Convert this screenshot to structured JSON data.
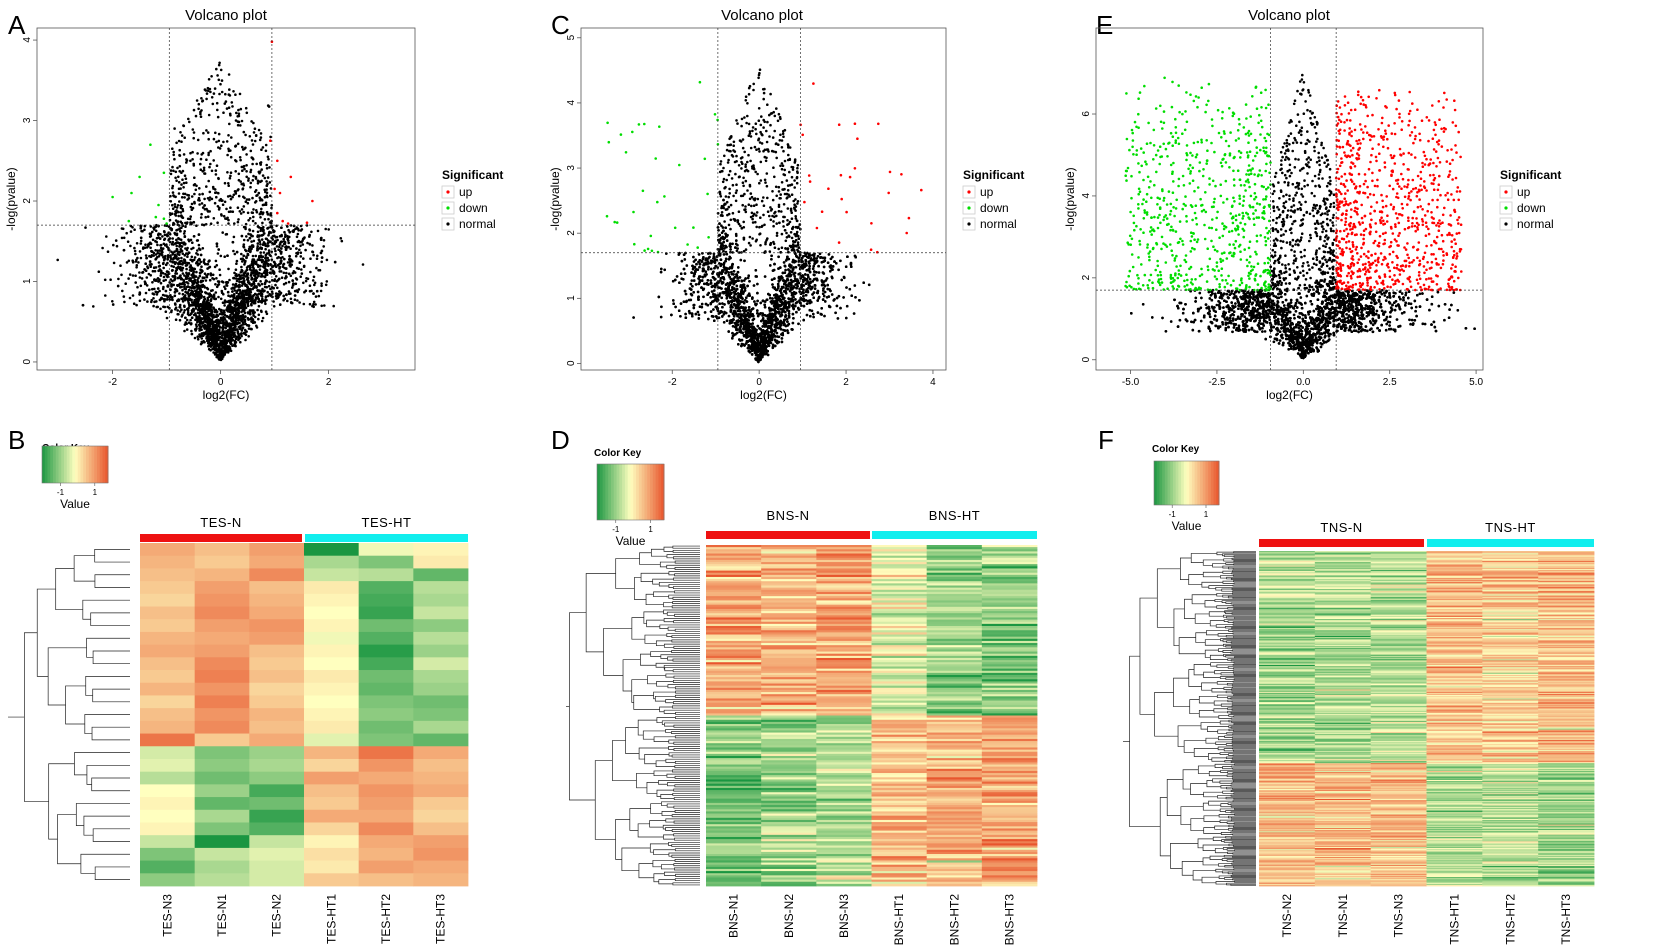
{
  "colors": {
    "up": "#ff0000",
    "down": "#00dd00",
    "normal": "#000000",
    "group_n": "#ee1111",
    "group_ht": "#11eeee",
    "heat_low": "#1a9641",
    "heat_mid": "#ffffbf",
    "heat_high": "#e8552d"
  },
  "chart_data": [
    {
      "panel": "A",
      "type": "scatter",
      "title": "Volcano plot",
      "xlabel": "log2(FC)",
      "ylabel": "-log(pvalue)",
      "xlim": [
        -3.4,
        3.6
      ],
      "ylim": [
        -0.1,
        4.15
      ],
      "xticks": [
        -2,
        0,
        2
      ],
      "yticks": [
        0,
        1,
        2,
        3,
        4
      ],
      "fc_cutoff": [
        -0.95,
        0.95
      ],
      "p_cutoff": 1.7,
      "legend_title": "Significant",
      "legend": [
        "up",
        "down",
        "normal"
      ],
      "approx_points": {
        "normal": 7000,
        "up": 10,
        "down": 10
      },
      "up_points": [
        [
          0.95,
          3.98
        ],
        [
          1.05,
          2.5
        ],
        [
          1.0,
          2.15
        ],
        [
          1.1,
          2.1
        ],
        [
          1.3,
          2.3
        ],
        [
          1.7,
          2.0
        ],
        [
          0.92,
          2.75
        ],
        [
          1.15,
          1.75
        ],
        [
          1.25,
          1.72
        ],
        [
          1.6,
          1.73
        ],
        [
          1.05,
          1.85
        ]
      ],
      "down_points": [
        [
          -2.0,
          2.05
        ],
        [
          -1.65,
          2.1
        ],
        [
          -1.5,
          2.3
        ],
        [
          -1.3,
          2.7
        ],
        [
          -1.05,
          2.35
        ],
        [
          -1.2,
          1.8
        ],
        [
          -1.05,
          1.78
        ],
        [
          -1.7,
          1.75
        ],
        [
          -1.15,
          1.95
        ],
        [
          -1.0,
          1.72
        ]
      ]
    },
    {
      "panel": "C",
      "type": "scatter",
      "title": "Volcano plot",
      "xlabel": "log2(FC)",
      "ylabel": "-log(pvalue)",
      "xlim": [
        -4.1,
        4.3
      ],
      "ylim": [
        -0.1,
        5.15
      ],
      "xticks": [
        -2,
        0,
        2,
        4
      ],
      "yticks": [
        0,
        1,
        2,
        3,
        4,
        5
      ],
      "fc_cutoff": [
        -0.95,
        0.95
      ],
      "p_cutoff": 1.7,
      "legend_title": "Significant",
      "legend": [
        "up",
        "down",
        "normal"
      ],
      "approx_points": {
        "normal": 8000,
        "up": 45,
        "down": 55
      }
    },
    {
      "panel": "E",
      "type": "scatter",
      "title": "Volcano plot",
      "xlabel": "log2(FC)",
      "ylabel": "-log(pvalue)",
      "xlim": [
        -6.0,
        5.2
      ],
      "ylim": [
        -0.25,
        8.1
      ],
      "xticks": [
        -5.0,
        -2.5,
        0.0,
        2.5,
        5.0
      ],
      "xticklabels": [
        "-5.0",
        "-2.5",
        "0.0",
        "2.5",
        "5.0"
      ],
      "yticks": [
        0,
        2,
        4,
        6
      ],
      "fc_cutoff": [
        -0.95,
        0.95
      ],
      "p_cutoff": 1.7,
      "legend_title": "Significant",
      "legend": [
        "up",
        "down",
        "normal"
      ],
      "approx_points": {
        "normal": 9000,
        "up": 1400,
        "down": 1100
      }
    },
    {
      "panel": "B",
      "type": "heatmap",
      "color_key": {
        "title": "Color Key",
        "ticks": [
          "-1",
          "1"
        ],
        "value_label": "Value"
      },
      "groups": [
        {
          "name": "TES-N",
          "cols": 3
        },
        {
          "name": "TES-HT",
          "cols": 3
        }
      ],
      "columns": [
        "TES-N3",
        "TES-N1",
        "TES-N2",
        "TES-HT1",
        "TES-HT2",
        "TES-HT3"
      ],
      "values": [
        [
          0.8,
          0.6,
          0.9,
          -1.7,
          -0.1,
          0.1
        ],
        [
          0.7,
          0.5,
          0.8,
          -0.6,
          -0.9,
          0.2
        ],
        [
          0.6,
          0.7,
          1.1,
          -0.4,
          -0.5,
          -1.1
        ],
        [
          0.5,
          0.9,
          0.6,
          0.2,
          -1.2,
          -0.5
        ],
        [
          0.4,
          1.0,
          0.7,
          0.1,
          -1.3,
          -0.6
        ],
        [
          0.6,
          1.1,
          0.8,
          0.0,
          -1.4,
          -0.4
        ],
        [
          0.5,
          0.9,
          1.0,
          0.1,
          -1.0,
          -0.8
        ],
        [
          0.7,
          0.8,
          0.9,
          -0.1,
          -1.2,
          -0.5
        ],
        [
          0.8,
          0.9,
          0.6,
          0.1,
          -1.5,
          -0.7
        ],
        [
          0.6,
          1.1,
          0.5,
          0.0,
          -1.3,
          -0.3
        ],
        [
          0.5,
          1.2,
          0.6,
          0.2,
          -1.0,
          -0.6
        ],
        [
          0.7,
          1.0,
          0.4,
          0.1,
          -1.1,
          -0.7
        ],
        [
          0.4,
          1.2,
          0.5,
          0.0,
          -0.9,
          -1.0
        ],
        [
          0.6,
          1.0,
          0.7,
          0.1,
          -0.8,
          -0.9
        ],
        [
          0.7,
          1.1,
          0.6,
          0.2,
          -1.0,
          -0.6
        ],
        [
          1.3,
          0.5,
          0.8,
          -0.2,
          -0.9,
          -1.1
        ],
        [
          -0.3,
          -0.9,
          -0.7,
          0.7,
          1.3,
          0.8
        ],
        [
          -0.2,
          -0.8,
          -0.6,
          0.4,
          1.0,
          0.6
        ],
        [
          -0.5,
          -1.0,
          -0.8,
          0.9,
          0.8,
          0.7
        ],
        [
          0.0,
          -0.7,
          -1.3,
          0.6,
          1.0,
          0.8
        ],
        [
          0.1,
          -1.1,
          -1.0,
          0.5,
          0.9,
          0.5
        ],
        [
          0.0,
          -0.6,
          -1.4,
          0.8,
          0.8,
          0.4
        ],
        [
          0.1,
          -0.9,
          -1.2,
          0.4,
          1.1,
          0.6
        ],
        [
          -0.4,
          -1.6,
          -0.4,
          0.1,
          0.8,
          0.9
        ],
        [
          -0.9,
          -0.4,
          -0.2,
          0.3,
          0.7,
          1.0
        ],
        [
          -1.2,
          -0.6,
          -0.3,
          0.2,
          0.9,
          0.8
        ],
        [
          -0.8,
          -0.5,
          -0.3,
          0.5,
          0.6,
          0.7
        ]
      ]
    },
    {
      "panel": "D",
      "type": "heatmap",
      "color_key": {
        "title": "Color Key",
        "ticks": [
          "-1",
          "1"
        ],
        "value_label": "Value"
      },
      "groups": [
        {
          "name": "BNS-N",
          "cols": 3
        },
        {
          "name": "BNS-HT",
          "cols": 3
        }
      ],
      "columns": [
        "BNS-N1",
        "BNS-N2",
        "BNS-N3",
        "BNS-HT1",
        "BNS-HT2",
        "BNS-HT3"
      ],
      "approx_rows": 160,
      "cluster_means": [
        {
          "rows": 80,
          "means": [
            0.8,
            0.7,
            0.9,
            -0.2,
            -0.7,
            -0.8
          ]
        },
        {
          "rows": 80,
          "means": [
            -0.9,
            -0.7,
            -0.6,
            0.6,
            0.7,
            0.8
          ]
        }
      ]
    },
    {
      "panel": "F",
      "type": "heatmap",
      "color_key": {
        "title": "Color Key",
        "ticks": [
          "-1",
          "1"
        ],
        "value_label": "Value"
      },
      "groups": [
        {
          "name": "TNS-N",
          "cols": 3
        },
        {
          "name": "TNS-HT",
          "cols": 3
        }
      ],
      "columns": [
        "TNS-N2",
        "TNS-N1",
        "TNS-N3",
        "TNS-HT1",
        "TNS-HT2",
        "TNS-HT3"
      ],
      "approx_rows": 300,
      "cluster_means": [
        {
          "rows": 190,
          "means": [
            -0.6,
            -0.6,
            -0.5,
            0.6,
            0.5,
            0.6
          ]
        },
        {
          "rows": 110,
          "means": [
            0.6,
            0.6,
            0.6,
            -0.5,
            -0.6,
            -0.7
          ]
        }
      ]
    }
  ]
}
